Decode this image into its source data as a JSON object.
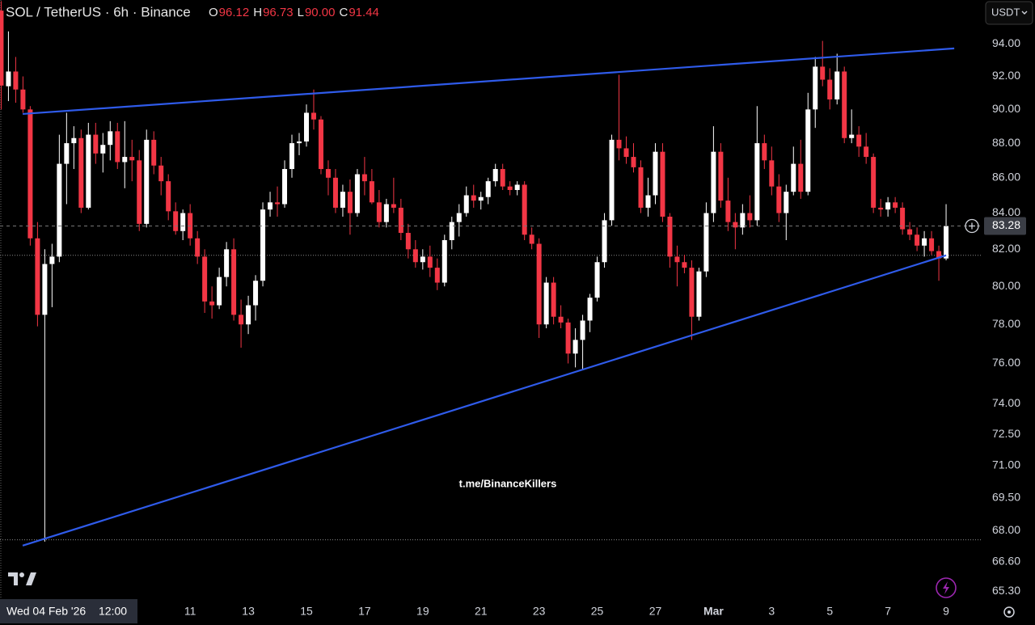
{
  "chart_data": {
    "type": "candlestick",
    "title": "SOL / TetherUS · 6h · Binance",
    "ohlc_legend": {
      "keys": [
        "O",
        "H",
        "L",
        "C"
      ],
      "value_labels": [
        "96.12",
        "96.73",
        "90.00",
        "91.44"
      ]
    },
    "currency": "USDT",
    "watermark": "t.me/BinanceKillers",
    "crosshair_date": "Wed 04 Feb '26",
    "crosshair_time": "12:00",
    "log_scale": true,
    "up_color": "#ffffff",
    "down_color": "#f23645",
    "line_color": "#2f5bea",
    "x": [
      0.5,
      0.75,
      1,
      1.25,
      1.5,
      1.75,
      2,
      2.25,
      2.5,
      2.75,
      3,
      3.25,
      3.5,
      3.75,
      4,
      4.25,
      4.5,
      4.75,
      5,
      5.25,
      5.5,
      5.75,
      6,
      6.25,
      6.5,
      6.75,
      7,
      7.25,
      7.5,
      7.75,
      8,
      8.25,
      8.5,
      8.75,
      9,
      9.25,
      9.5,
      9.75,
      10,
      10.25,
      10.5,
      10.75,
      11,
      11.25,
      11.5,
      11.75,
      12,
      12.25,
      12.5,
      12.75,
      13,
      13.25,
      13.5,
      13.75,
      14,
      14.25,
      14.5,
      14.75,
      15,
      15.25,
      15.5,
      15.75,
      16,
      16.25,
      16.5,
      16.75,
      17,
      17.25,
      17.5,
      17.75,
      18,
      18.25,
      18.5,
      18.75,
      19,
      19.25,
      19.5,
      19.75,
      20,
      20.25,
      20.5,
      20.75,
      21,
      21.25,
      21.5,
      21.75,
      22,
      22.25,
      22.5,
      22.75,
      23,
      23.25,
      23.5,
      23.75,
      24,
      24.25,
      24.5,
      24.75,
      25,
      25.25,
      25.5,
      25.75,
      26,
      26.25,
      26.5,
      26.75,
      27,
      27.25,
      27.5,
      27.75,
      28,
      28.25,
      28.5,
      28.75,
      29,
      29.25,
      29.5,
      29.75,
      30,
      30.25,
      30.5,
      30.75,
      31,
      31.25,
      31.5,
      31.75,
      32,
      32.25,
      32.5,
      32.75,
      33
    ],
    "open": [
      96.12,
      91.4,
      92.3,
      91.2,
      90.0,
      82.6,
      78.5,
      81.2,
      81.6,
      86.8,
      88.0,
      88.3,
      84.3,
      88.5,
      87.4,
      87.9,
      88.7,
      86.9,
      87.2,
      87.0,
      83.4,
      88.2,
      86.7,
      85.8,
      84.1,
      83.0,
      84.0,
      82.6,
      81.6,
      79.2,
      79.0,
      80.5,
      82.0,
      78.5,
      78.0,
      79.0,
      80.3,
      84.2,
      84.6,
      84.5,
      86.5,
      88.0,
      88.1,
      89.8,
      89.4,
      86.5,
      86.0,
      84.3,
      85.2,
      84.0,
      86.2,
      85.8,
      84.6,
      83.5,
      84.5,
      84.3,
      82.9,
      82.0,
      81.3,
      81.6,
      81.0,
      80.2,
      82.5,
      83.5,
      84.0,
      85.0,
      84.7,
      84.9,
      85.8,
      86.5,
      85.5,
      85.3,
      85.6,
      82.8,
      82.3,
      78.0,
      80.2,
      78.4,
      78.1,
      76.5,
      77.2,
      78.2,
      79.4,
      81.3,
      83.6,
      88.2,
      87.7,
      87.2,
      86.6,
      84.3,
      85.0,
      87.5,
      83.8,
      81.6,
      81.3,
      81.0,
      78.4,
      80.8,
      84.0,
      87.5,
      84.7,
      83.5,
      83.2,
      84.0,
      83.6,
      88.0,
      87.0,
      85.5,
      84.0,
      85.2,
      86.8,
      85.2,
      90.0,
      92.6,
      91.8,
      90.6,
      92.3,
      88.3,
      88.5,
      87.8,
      87.2,
      84.3,
      84.2,
      84.6,
      84.3,
      83.1,
      82.8,
      82.2,
      82.6,
      81.9,
      81.5
    ],
    "high": [
      96.73,
      94.8,
      93.2,
      92,
      90.2,
      83.5,
      82.0,
      82.3,
      88.5,
      89.8,
      89.0,
      88.8,
      89.2,
      89.2,
      88.6,
      89.3,
      89.2,
      89.3,
      88.2,
      87.6,
      88.8,
      88.7,
      87.2,
      86.2,
      84.6,
      84.2,
      84.5,
      83.0,
      82.0,
      80.0,
      81.0,
      82.4,
      82.6,
      79.3,
      79.5,
      80.6,
      84.6,
      85.2,
      85.5,
      87.0,
      88.5,
      88.6,
      90.3,
      91.2,
      89.6,
      87.0,
      86.5,
      85.6,
      85.9,
      86.5,
      87.2,
      86.5,
      85.3,
      84.8,
      86.0,
      84.8,
      83.4,
      82.5,
      82.0,
      82.2,
      81.5,
      82.8,
      83.8,
      84.5,
      85.5,
      85.6,
      85.2,
      86.0,
      86.8,
      86.8,
      85.8,
      85.8,
      85.8,
      83.2,
      82.6,
      80.5,
      80.5,
      79.0,
      78.3,
      77.8,
      78.5,
      79.6,
      81.6,
      84.0,
      88.5,
      92.1,
      88.4,
      88.0,
      87.0,
      86.0,
      88.0,
      88.0,
      84.0,
      82.2,
      81.7,
      81.4,
      81.0,
      84.6,
      89.0,
      88.0,
      86.0,
      84.0,
      84.5,
      85.0,
      90.2,
      88.5,
      87.8,
      86.2,
      85.6,
      87.8,
      88.2,
      91.0,
      93.2,
      94.2,
      92.5,
      93.4,
      92.6,
      90.0,
      89.0,
      88.6,
      87.4,
      84.8,
      84.9,
      84.9,
      84.6,
      83.5,
      83.2,
      83.0,
      83.0,
      82.2,
      84.5
    ],
    "low": [
      90.0,
      90.5,
      90.4,
      89.8,
      82.2,
      77.9,
      67.5,
      78.9,
      81.3,
      84.5,
      86.5,
      84.0,
      84.2,
      86.8,
      86.3,
      87.0,
      86.5,
      85.4,
      85.8,
      83.0,
      83.2,
      86.2,
      85.0,
      83.6,
      82.8,
      82.5,
      82.2,
      81.2,
      78.6,
      78.3,
      78.8,
      80.0,
      78.2,
      76.8,
      77.5,
      78.2,
      80.0,
      83.8,
      83.8,
      84.3,
      86.0,
      87.3,
      87.8,
      88.8,
      86.2,
      85.0,
      84.0,
      83.8,
      82.8,
      83.8,
      85.0,
      84.5,
      83.2,
      83.2,
      84.0,
      82.5,
      81.5,
      81.0,
      80.9,
      80.5,
      79.8,
      80.0,
      82.0,
      82.7,
      83.8,
      84.3,
      84.2,
      84.5,
      85.5,
      85.3,
      85.0,
      85.0,
      82.5,
      82.0,
      77.3,
      77.8,
      78.0,
      77.8,
      76.0,
      75.8,
      75.7,
      77.6,
      79.2,
      81.0,
      83.3,
      87.0,
      86.8,
      86.3,
      84.0,
      83.8,
      84.5,
      83.5,
      81.0,
      80.0,
      80.7,
      77.2,
      78.2,
      80.5,
      83.5,
      84.3,
      83.0,
      82.0,
      82.8,
      83.2,
      83.3,
      86.5,
      85.0,
      83.5,
      82.5,
      85.0,
      84.8,
      85.0,
      88.9,
      91.4,
      90.0,
      90.3,
      88.0,
      88.0,
      87.2,
      86.8,
      84.0,
      83.8,
      83.8,
      84.0,
      82.8,
      82.5,
      81.9,
      81.6,
      81.7,
      80.3,
      81.4
    ],
    "close": [
      91.44,
      92.3,
      91.2,
      90.0,
      82.6,
      78.5,
      81.2,
      81.6,
      86.8,
      88.0,
      88.3,
      84.3,
      88.5,
      87.4,
      87.9,
      88.7,
      86.9,
      87.2,
      87.0,
      83.4,
      88.2,
      86.7,
      85.8,
      84.1,
      83.0,
      84.0,
      82.6,
      81.6,
      79.2,
      79.0,
      80.5,
      82.0,
      78.5,
      78.0,
      79.0,
      80.3,
      84.2,
      84.6,
      84.5,
      86.5,
      88.0,
      88.1,
      89.8,
      89.4,
      86.5,
      86.0,
      84.3,
      85.2,
      84.0,
      86.2,
      85.8,
      84.6,
      83.5,
      84.5,
      84.3,
      82.9,
      82.0,
      81.3,
      81.6,
      81.0,
      80.2,
      82.5,
      83.5,
      84.0,
      85.0,
      84.7,
      84.9,
      85.8,
      86.5,
      85.5,
      85.3,
      85.6,
      82.8,
      82.3,
      78.0,
      80.2,
      78.4,
      78.1,
      76.5,
      77.2,
      78.2,
      79.4,
      81.3,
      83.6,
      88.2,
      87.7,
      87.2,
      86.6,
      84.3,
      85.0,
      87.5,
      83.8,
      81.6,
      81.3,
      81.0,
      78.4,
      80.8,
      84.0,
      87.5,
      84.7,
      83.5,
      83.2,
      84.0,
      83.6,
      88.0,
      87.0,
      85.5,
      84.0,
      85.2,
      86.8,
      85.2,
      90.0,
      92.6,
      91.8,
      90.6,
      92.3,
      88.3,
      88.5,
      87.8,
      87.2,
      84.3,
      84.2,
      84.6,
      84.3,
      83.1,
      82.8,
      82.2,
      82.6,
      81.9,
      81.5,
      83.28
    ],
    "trendlines": [
      {
        "x": [
          1.24,
          33.28
        ],
        "y": [
          89.73,
          93.73
        ]
      },
      {
        "x": [
          1.24,
          33.0
        ],
        "y": [
          67.32,
          81.67
        ]
      }
    ],
    "horizontal_lines": [
      81.67,
      67.58
    ],
    "xlim": [
      0.46,
      34.25
    ],
    "xticks": [
      {
        "value": 7,
        "label": "11"
      },
      {
        "value": 9,
        "label": "13"
      },
      {
        "value": 11,
        "label": "15"
      },
      {
        "value": 13,
        "label": "17"
      },
      {
        "value": 15,
        "label": "19"
      },
      {
        "value": 17,
        "label": "21"
      },
      {
        "value": 19,
        "label": "23"
      },
      {
        "value": 21,
        "label": "25"
      },
      {
        "value": 23,
        "label": "27"
      },
      {
        "value": 25,
        "label": "Mar"
      },
      {
        "value": 27,
        "label": "3"
      },
      {
        "value": 29,
        "label": "5"
      },
      {
        "value": 31,
        "label": "7"
      },
      {
        "value": 33,
        "label": "9"
      }
    ],
    "ylim": [
      65,
      96.8
    ],
    "yticks": [
      {
        "value": 94,
        "label": "94.00"
      },
      {
        "value": 92,
        "label": "92.00"
      },
      {
        "value": 90,
        "label": "90.00"
      },
      {
        "value": 88,
        "label": "88.00"
      },
      {
        "value": 86,
        "label": "86.00"
      },
      {
        "value": 84,
        "label": "84.00"
      },
      {
        "value": 82,
        "label": "82.00"
      },
      {
        "value": 80,
        "label": "80.00"
      },
      {
        "value": 78,
        "label": "78.00"
      },
      {
        "value": 76,
        "label": "76.00"
      },
      {
        "value": 74,
        "label": "74.00"
      },
      {
        "value": 72.5,
        "label": "72.50"
      },
      {
        "value": 71,
        "label": "71.00"
      },
      {
        "value": 69.5,
        "label": "69.50"
      },
      {
        "value": 68,
        "label": "68.00"
      },
      {
        "value": 66.6,
        "label": "66.60"
      },
      {
        "value": 65.3,
        "label": "65.30"
      }
    ]
  }
}
